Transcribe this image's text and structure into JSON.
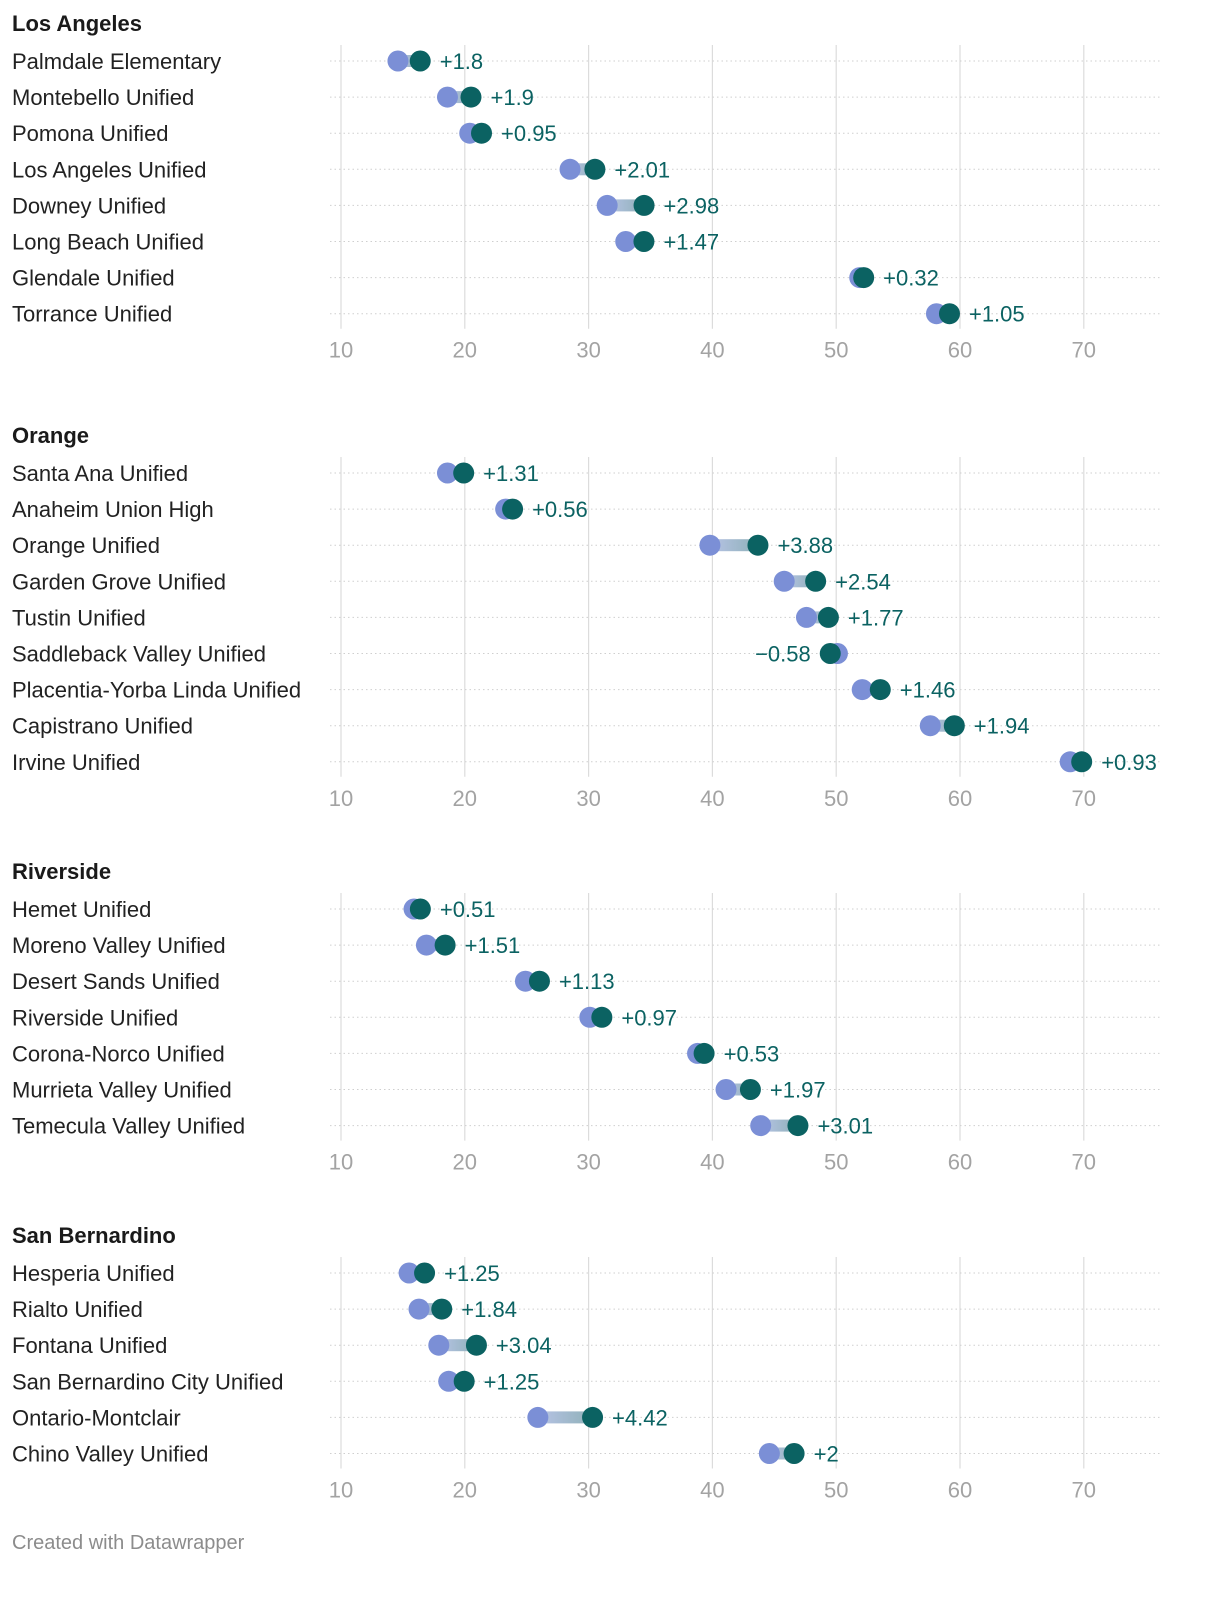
{
  "footer": "Created with Datawrapper",
  "colors": {
    "start": "#7b8fd6",
    "end": "#0b6262",
    "label": "#0b6262",
    "grid": "#dcdcdc",
    "rowline": "#cfcfcf",
    "tick": "#a3a3a3"
  },
  "chart_data": {
    "type": "dot-range",
    "xlim": [
      10,
      73
    ],
    "ticks": [
      10,
      20,
      30,
      40,
      50,
      60,
      70
    ],
    "panels": [
      {
        "title": "Los Angeles",
        "rows": [
          {
            "name": "Palmdale Elementary",
            "start": 14.6,
            "end": 16.4,
            "label": "+1.8"
          },
          {
            "name": "Montebello Unified",
            "start": 18.6,
            "end": 20.5,
            "label": "+1.9"
          },
          {
            "name": "Pomona Unified",
            "start": 20.4,
            "end": 21.35,
            "label": "+0.95"
          },
          {
            "name": "Los Angeles Unified",
            "start": 28.5,
            "end": 30.51,
            "label": "+2.01"
          },
          {
            "name": "Downey Unified",
            "start": 31.5,
            "end": 34.48,
            "label": "+2.98"
          },
          {
            "name": "Long Beach Unified",
            "start": 33.0,
            "end": 34.47,
            "label": "+1.47"
          },
          {
            "name": "Glendale Unified",
            "start": 51.9,
            "end": 52.22,
            "label": "+0.32"
          },
          {
            "name": "Torrance Unified",
            "start": 58.1,
            "end": 59.15,
            "label": "+1.05"
          }
        ]
      },
      {
        "title": "Orange",
        "rows": [
          {
            "name": "Santa Ana Unified",
            "start": 18.6,
            "end": 19.91,
            "label": "+1.31"
          },
          {
            "name": "Anaheim Union High",
            "start": 23.3,
            "end": 23.86,
            "label": "+0.56"
          },
          {
            "name": "Orange Unified",
            "start": 39.8,
            "end": 43.68,
            "label": "+3.88"
          },
          {
            "name": "Garden Grove Unified",
            "start": 45.8,
            "end": 48.34,
            "label": "+2.54"
          },
          {
            "name": "Tustin Unified",
            "start": 47.6,
            "end": 49.37,
            "label": "+1.77"
          },
          {
            "name": "Saddleback Valley Unified",
            "start": 50.1,
            "end": 49.52,
            "label": "−0.58"
          },
          {
            "name": "Placentia-Yorba Linda Unified",
            "start": 52.1,
            "end": 53.56,
            "label": "+1.46"
          },
          {
            "name": "Capistrano Unified",
            "start": 57.6,
            "end": 59.54,
            "label": "+1.94"
          },
          {
            "name": "Irvine Unified",
            "start": 68.9,
            "end": 69.83,
            "label": "+0.93"
          }
        ]
      },
      {
        "title": "Riverside",
        "rows": [
          {
            "name": "Hemet Unified",
            "start": 15.9,
            "end": 16.41,
            "label": "+0.51"
          },
          {
            "name": "Moreno Valley Unified",
            "start": 16.9,
            "end": 18.41,
            "label": "+1.51"
          },
          {
            "name": "Desert Sands Unified",
            "start": 24.9,
            "end": 26.03,
            "label": "+1.13"
          },
          {
            "name": "Riverside Unified",
            "start": 30.1,
            "end": 31.07,
            "label": "+0.97"
          },
          {
            "name": "Corona-Norco Unified",
            "start": 38.8,
            "end": 39.33,
            "label": "+0.53"
          },
          {
            "name": "Murrieta Valley Unified",
            "start": 41.1,
            "end": 43.07,
            "label": "+1.97"
          },
          {
            "name": "Temecula Valley Unified",
            "start": 43.9,
            "end": 46.91,
            "label": "+3.01"
          }
        ]
      },
      {
        "title": "San Bernardino",
        "rows": [
          {
            "name": "Hesperia Unified",
            "start": 15.5,
            "end": 16.75,
            "label": "+1.25"
          },
          {
            "name": "Rialto Unified",
            "start": 16.3,
            "end": 18.14,
            "label": "+1.84"
          },
          {
            "name": "Fontana Unified",
            "start": 17.9,
            "end": 20.94,
            "label": "+3.04"
          },
          {
            "name": "San Bernardino City Unified",
            "start": 18.7,
            "end": 19.95,
            "label": "+1.25"
          },
          {
            "name": "Ontario-Montclair",
            "start": 25.9,
            "end": 30.32,
            "label": "+4.42"
          },
          {
            "name": "Chino Valley Unified",
            "start": 44.6,
            "end": 46.6,
            "label": "+2"
          }
        ]
      }
    ]
  }
}
